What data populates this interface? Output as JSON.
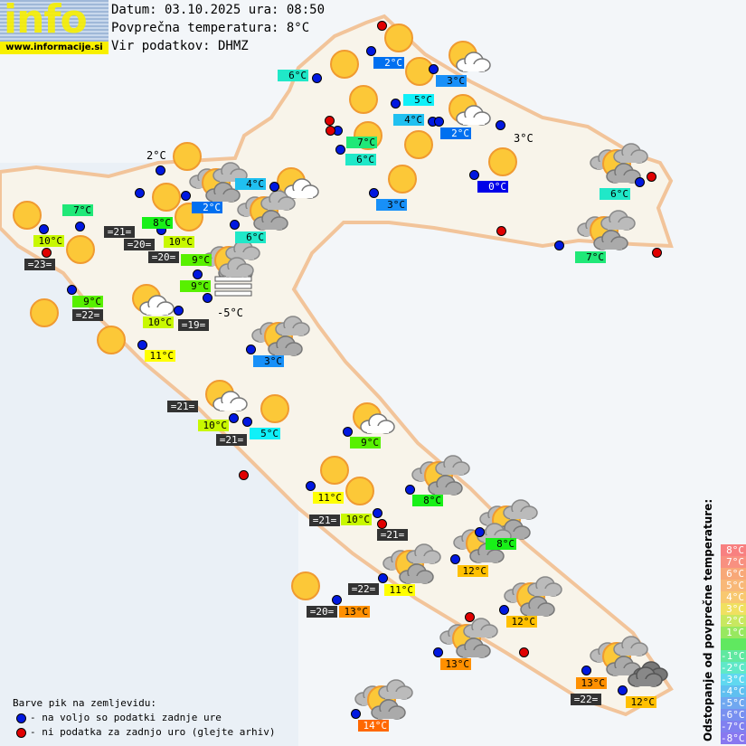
{
  "header": {
    "logo_text": "info",
    "logo_url": "www.informacije.si",
    "date_line": "Datum: 03.10.2025 ura: 08:50",
    "avg_line": "Povprečna temperatura: 8°C",
    "source_line": "Vir podatkov: DHMZ"
  },
  "labels": [
    "6°C",
    "2°C",
    "3°C",
    "5°C",
    "4°C",
    "2°C",
    "7°C",
    "6°C",
    "0°C",
    "3°C",
    "4°C",
    "2°C",
    "6°C",
    "6°C",
    "7°C",
    "7°C",
    "8°C",
    "10°C",
    "=21=",
    "=20=",
    "10°C",
    "9°C",
    "=20=",
    "=23=",
    "9°C",
    "9°C",
    "=22=",
    "10°C",
    "=19=",
    "11°C",
    "3°C",
    "=21=",
    "10°C",
    "5°C",
    "=21=",
    "9°C",
    "11°C",
    "8°C",
    "=21=",
    "10°C",
    "=21=",
    "8°C",
    "12°C",
    "=22=",
    "11°C",
    "=20=",
    "13°C",
    "12°C",
    "13°C",
    "13°C",
    "=22=",
    "12°C",
    "14°C"
  ],
  "plain_labels": [
    "3°C",
    "2°C",
    "-5°C"
  ],
  "icons": [
    "sun",
    "sun",
    "sun",
    "sun",
    "sun",
    "sun",
    "sun",
    "sun",
    "sun",
    "sun",
    "sun",
    "sun",
    "sun",
    "sun",
    "sun",
    "sun",
    "sun",
    "sun",
    "sun",
    "sun-cloud",
    "sun-cloud",
    "sun-cloud",
    "sun-cloud",
    "sun-cloud",
    "sun-cloud",
    "sun-clouds",
    "sun-clouds",
    "sun-clouds",
    "sun-clouds",
    "sun-clouds",
    "sun-clouds",
    "sun-clouds",
    "sun-clouds",
    "sun-clouds",
    "sun-clouds",
    "sun-clouds",
    "sun-clouds",
    "sun-clouds",
    "sun-clouds",
    "overcast",
    "fog"
  ],
  "temp_colors": {
    "0": "#0000e8",
    "2": "#0070f0",
    "3": "#1890f8",
    "4": "#20c0f0",
    "5": "#10f0f8",
    "6": "#20e8c8",
    "7": "#20e878",
    "8": "#18f018",
    "9": "#58f000",
    "10": "#c8f800",
    "11": "#ffff00",
    "12": "#ffc000",
    "13": "#ff9000",
    "14": "#ff6800",
    "sea": "#333333"
  },
  "legend": {
    "title": "Barve pik na zemljevidu:",
    "blue": "- na voljo so podatki zadnje ure",
    "red": "- ni podatka za zadnjo uro (glejte arhiv)",
    "blue_color": "#0018e0",
    "red_color": "#e00000"
  },
  "scale": {
    "title": "Odstopanje od povprečne temperature:",
    "steps": [
      "8°C",
      "7°C",
      "6°C",
      "5°C",
      "4°C",
      "3°C",
      "2°C",
      "1°C",
      "",
      "-1°C",
      "-2°C",
      "-3°C",
      "-4°C",
      "-5°C",
      "-6°C",
      "-7°C",
      "-8°C"
    ],
    "colors": [
      "#f88080",
      "#f89080",
      "#f8a878",
      "#f8b878",
      "#f8c870",
      "#f0e060",
      "#c8e860",
      "#98e860",
      "#60e860",
      "#60e8a0",
      "#60e8c8",
      "#60d8f0",
      "#60c0f0",
      "#70a8f0",
      "#7890f0",
      "#8080f0",
      "#8878f0"
    ]
  }
}
